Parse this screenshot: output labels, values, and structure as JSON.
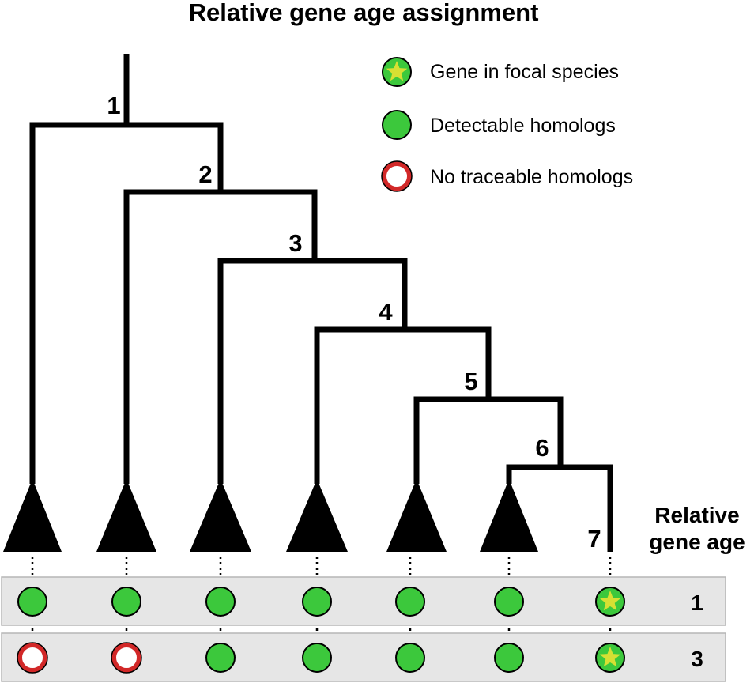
{
  "title": "Relative gene age assignment",
  "legend": [
    {
      "type": "focal",
      "label": "Gene in focal species"
    },
    {
      "type": "detect",
      "label": "Detectable homologs"
    },
    {
      "type": "none",
      "label": "No traceable homologs"
    }
  ],
  "node_labels": [
    "1",
    "2",
    "3",
    "4",
    "5",
    "6",
    "7"
  ],
  "relative_age_header": [
    "Relative",
    "gene age"
  ],
  "rows": [
    {
      "age": "1",
      "cells": [
        "detect",
        "detect",
        "detect",
        "detect",
        "detect",
        "detect",
        "focal"
      ]
    },
    {
      "age": "3",
      "cells": [
        "none",
        "none",
        "detect",
        "detect",
        "detect",
        "detect",
        "focal"
      ]
    }
  ],
  "colors": {
    "green": "#3cc83c",
    "star": "#d6e033",
    "red": "#d22828",
    "row_bg": "#e6e6e6"
  }
}
